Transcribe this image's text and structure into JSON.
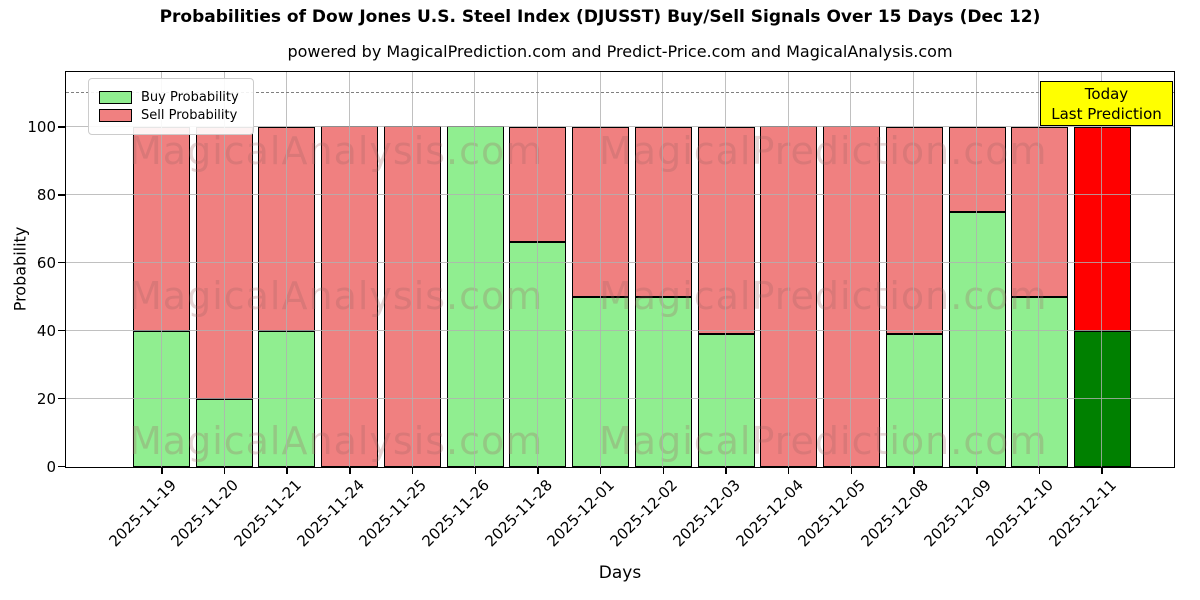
{
  "title": "Probabilities of Dow Jones U.S. Steel Index (DJUSST) Buy/Sell Signals Over 15 Days (Dec 12)",
  "subtitle": "powered by MagicalPrediction.com and Predict-Price.com and MagicalAnalysis.com",
  "axes": {
    "xlabel": "Days",
    "ylabel": "Probability",
    "yticks": [
      0,
      20,
      40,
      60,
      80,
      100
    ],
    "ylim": [
      0,
      116
    ],
    "dashed_line_y": 110
  },
  "legend": {
    "items": [
      {
        "label": "Buy Probability",
        "color": "#90ee90"
      },
      {
        "label": "Sell Probability",
        "color": "#f08080"
      }
    ]
  },
  "annotation": {
    "line1": "Today",
    "line2": "Last Prediction",
    "bg_color": "#ffff00",
    "border_color": "#000000"
  },
  "watermark": {
    "left_text": "MagicalAnalysis.com",
    "right_text": "MagicalPrediction.com"
  },
  "chart_data": {
    "type": "bar",
    "stacked": true,
    "title": "Probabilities of Dow Jones U.S. Steel Index (DJUSST) Buy/Sell Signals Over 15 Days (Dec 12)",
    "xlabel": "Days",
    "ylabel": "Probability",
    "ylim": [
      0,
      116
    ],
    "grid": true,
    "legend_position": "upper left",
    "dashed_threshold": 110,
    "categories": [
      "2025-11-19",
      "2025-11-20",
      "2025-11-21",
      "2025-11-24",
      "2025-11-25",
      "2025-11-26",
      "2025-11-28",
      "2025-12-01",
      "2025-12-02",
      "2025-12-03",
      "2025-12-04",
      "2025-12-05",
      "2025-12-08",
      "2025-12-09",
      "2025-12-10",
      "2025-12-11"
    ],
    "series": [
      {
        "name": "Buy Probability",
        "color": "#90ee90",
        "today_color": "#008000",
        "values": [
          40,
          20,
          40,
          0,
          0,
          100,
          66,
          50,
          50,
          39,
          0,
          0,
          39,
          75,
          50,
          40
        ]
      },
      {
        "name": "Sell Probability",
        "color": "#f08080",
        "today_color": "#ff0000",
        "values": [
          60,
          80,
          60,
          100,
          100,
          0,
          34,
          50,
          50,
          61,
          100,
          100,
          61,
          25,
          50,
          60
        ]
      }
    ],
    "today_index": 15
  }
}
